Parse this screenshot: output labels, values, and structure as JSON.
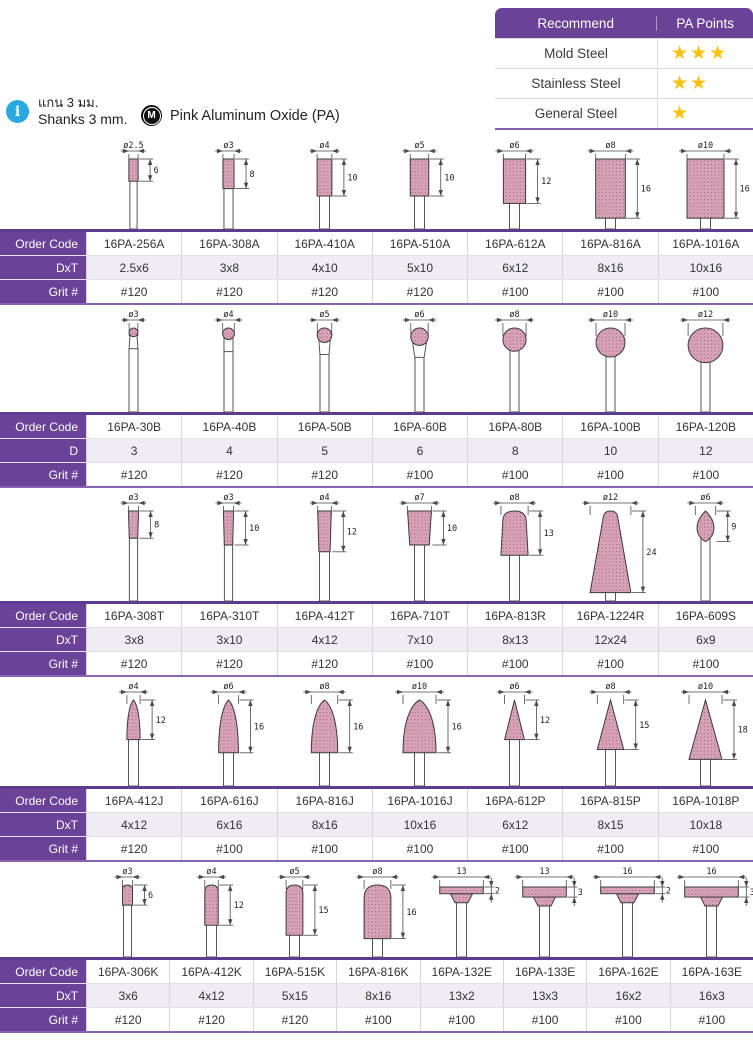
{
  "recommend_table": {
    "headers": [
      "Recommend",
      "PA Points"
    ],
    "rows": [
      {
        "label": "Mold Steel",
        "stars": "★★★"
      },
      {
        "label": "Stainless Steel",
        "stars": "★★"
      },
      {
        "label": "General Steel",
        "stars": "★"
      }
    ]
  },
  "info": {
    "thai": "แกน 3 มม.",
    "english": "Shanks 3 mm.",
    "material_badge": "M",
    "material": "Pink Aluminum Oxide (PA)"
  },
  "labels": {
    "order": "Order Code",
    "grit": "Grit #"
  },
  "colors": {
    "purple": "#6a4298",
    "star_gold": "#fcc10e",
    "stone_pink": "#dca6ba",
    "info_blue": "#29a9e0"
  },
  "sections": [
    {
      "dim_label": "DxT",
      "figures": [
        {
          "shape": "cyl",
          "d": 2.5,
          "len": 6,
          "dia_label": "ø2.5",
          "len_label": "6"
        },
        {
          "shape": "cyl",
          "d": 3,
          "len": 8,
          "dia_label": "ø3",
          "len_label": "8"
        },
        {
          "shape": "cyl",
          "d": 4,
          "len": 10,
          "dia_label": "ø4",
          "len_label": "10"
        },
        {
          "shape": "cyl",
          "d": 5,
          "len": 10,
          "dia_label": "ø5",
          "len_label": "10"
        },
        {
          "shape": "cyl",
          "d": 6,
          "len": 12,
          "dia_label": "ø6",
          "len_label": "12"
        },
        {
          "shape": "cyl",
          "d": 8,
          "len": 16,
          "dia_label": "ø8",
          "len_label": "16"
        },
        {
          "shape": "cyl",
          "d": 10,
          "len": 16,
          "dia_label": "ø10",
          "len_label": "16"
        }
      ],
      "codes": [
        "16PA-256A",
        "16PA-308A",
        "16PA-410A",
        "16PA-510A",
        "16PA-612A",
        "16PA-816A",
        "16PA-1016A"
      ],
      "dims": [
        "2.5x6",
        "3x8",
        "4x10",
        "5x10",
        "6x12",
        "8x16",
        "10x16"
      ],
      "grits": [
        "#120",
        "#120",
        "#120",
        "#120",
        "#100",
        "#100",
        "#100"
      ]
    },
    {
      "dim_label": "D",
      "figures": [
        {
          "shape": "ball",
          "d": 3,
          "dia_label": "ø3"
        },
        {
          "shape": "ball",
          "d": 4,
          "dia_label": "ø4"
        },
        {
          "shape": "ball",
          "d": 5,
          "dia_label": "ø5"
        },
        {
          "shape": "ball",
          "d": 6,
          "dia_label": "ø6"
        },
        {
          "shape": "ball",
          "d": 8,
          "dia_label": "ø8"
        },
        {
          "shape": "ball",
          "d": 10,
          "dia_label": "ø10"
        },
        {
          "shape": "ball",
          "d": 12,
          "dia_label": "ø12"
        }
      ],
      "codes": [
        "16PA-30B",
        "16PA-40B",
        "16PA-50B",
        "16PA-60B",
        "16PA-80B",
        "16PA-100B",
        "16PA-120B"
      ],
      "dims": [
        "3",
        "4",
        "5",
        "6",
        "8",
        "10",
        "12"
      ],
      "grits": [
        "#120",
        "#120",
        "#120",
        "#100",
        "#100",
        "#100",
        "#100"
      ]
    },
    {
      "dim_label": "DxT",
      "figures": [
        {
          "shape": "taper",
          "d": 3,
          "len": 8,
          "dia_label": "ø3",
          "len_label": "8"
        },
        {
          "shape": "taper",
          "d": 3,
          "len": 10,
          "dia_label": "ø3",
          "len_label": "10"
        },
        {
          "shape": "taper",
          "d": 4,
          "len": 12,
          "dia_label": "ø4",
          "len_label": "12"
        },
        {
          "shape": "taper",
          "d": 7,
          "len": 10,
          "dia_label": "ø7",
          "len_label": "10"
        },
        {
          "shape": "dome",
          "d": 8,
          "len": 13,
          "dia_label": "ø8",
          "len_label": "13"
        },
        {
          "shape": "cone",
          "d": 12,
          "len": 24,
          "dia_label": "ø12",
          "len_label": "24"
        },
        {
          "shape": "drop",
          "d": 6,
          "len": 9,
          "dia_label": "ø6",
          "len_label": "9"
        }
      ],
      "codes": [
        "16PA-308T",
        "16PA-310T",
        "16PA-412T",
        "16PA-710T",
        "16PA-813R",
        "16PA-1224R",
        "16PA-609S"
      ],
      "dims": [
        "3x8",
        "3x10",
        "4x12",
        "7x10",
        "8x13",
        "12x24",
        "6x9"
      ],
      "grits": [
        "#120",
        "#120",
        "#120",
        "#100",
        "#100",
        "#100",
        "#100"
      ]
    },
    {
      "dim_label": "DxT",
      "figures": [
        {
          "shape": "bulletJ",
          "d": 4,
          "len": 12,
          "dia_label": "ø4",
          "len_label": "12"
        },
        {
          "shape": "bulletJ",
          "d": 6,
          "len": 16,
          "dia_label": "ø6",
          "len_label": "16"
        },
        {
          "shape": "bulletJ",
          "d": 8,
          "len": 16,
          "dia_label": "ø8",
          "len_label": "16"
        },
        {
          "shape": "bulletJ",
          "d": 10,
          "len": 16,
          "dia_label": "ø10",
          "len_label": "16"
        },
        {
          "shape": "coneP",
          "d": 6,
          "len": 12,
          "dia_label": "ø6",
          "len_label": "12"
        },
        {
          "shape": "coneP",
          "d": 8,
          "len": 15,
          "dia_label": "ø8",
          "len_label": "15"
        },
        {
          "shape": "coneP",
          "d": 10,
          "len": 18,
          "dia_label": "ø10",
          "len_label": "18"
        }
      ],
      "codes": [
        "16PA-412J",
        "16PA-616J",
        "16PA-816J",
        "16PA-1016J",
        "16PA-612P",
        "16PA-815P",
        "16PA-1018P"
      ],
      "dims": [
        "4x12",
        "6x16",
        "8x16",
        "10x16",
        "6x12",
        "8x15",
        "10x18"
      ],
      "grits": [
        "#120",
        "#100",
        "#100",
        "#100",
        "#100",
        "#100",
        "#100"
      ]
    },
    {
      "dim_label": "DxT",
      "figures": [
        {
          "shape": "bulletK",
          "d": 3,
          "len": 6,
          "dia_label": "ø3",
          "len_label": "6"
        },
        {
          "shape": "bulletK",
          "d": 4,
          "len": 12,
          "dia_label": "ø4",
          "len_label": "12"
        },
        {
          "shape": "bulletK",
          "d": 5,
          "len": 15,
          "dia_label": "ø5",
          "len_label": "15"
        },
        {
          "shape": "bulletK",
          "d": 8,
          "len": 16,
          "dia_label": "ø8",
          "len_label": "16"
        },
        {
          "shape": "wheel",
          "d": 13,
          "len": 2,
          "dia_label": "13",
          "len_label": "2"
        },
        {
          "shape": "wheel",
          "d": 13,
          "len": 3,
          "dia_label": "13",
          "len_label": "3"
        },
        {
          "shape": "wheel",
          "d": 16,
          "len": 2,
          "dia_label": "16",
          "len_label": "2"
        },
        {
          "shape": "wheel",
          "d": 16,
          "len": 3,
          "dia_label": "16",
          "len_label": "3"
        }
      ],
      "codes": [
        "16PA-306K",
        "16PA-412K",
        "16PA-515K",
        "16PA-816K",
        "16PA-132E",
        "16PA-133E",
        "16PA-162E",
        "16PA-163E"
      ],
      "dims": [
        "3x6",
        "4x12",
        "5x15",
        "8x16",
        "13x2",
        "13x3",
        "16x2",
        "16x3"
      ],
      "grits": [
        "#120",
        "#120",
        "#120",
        "#100",
        "#100",
        "#100",
        "#100",
        "#100"
      ]
    }
  ]
}
